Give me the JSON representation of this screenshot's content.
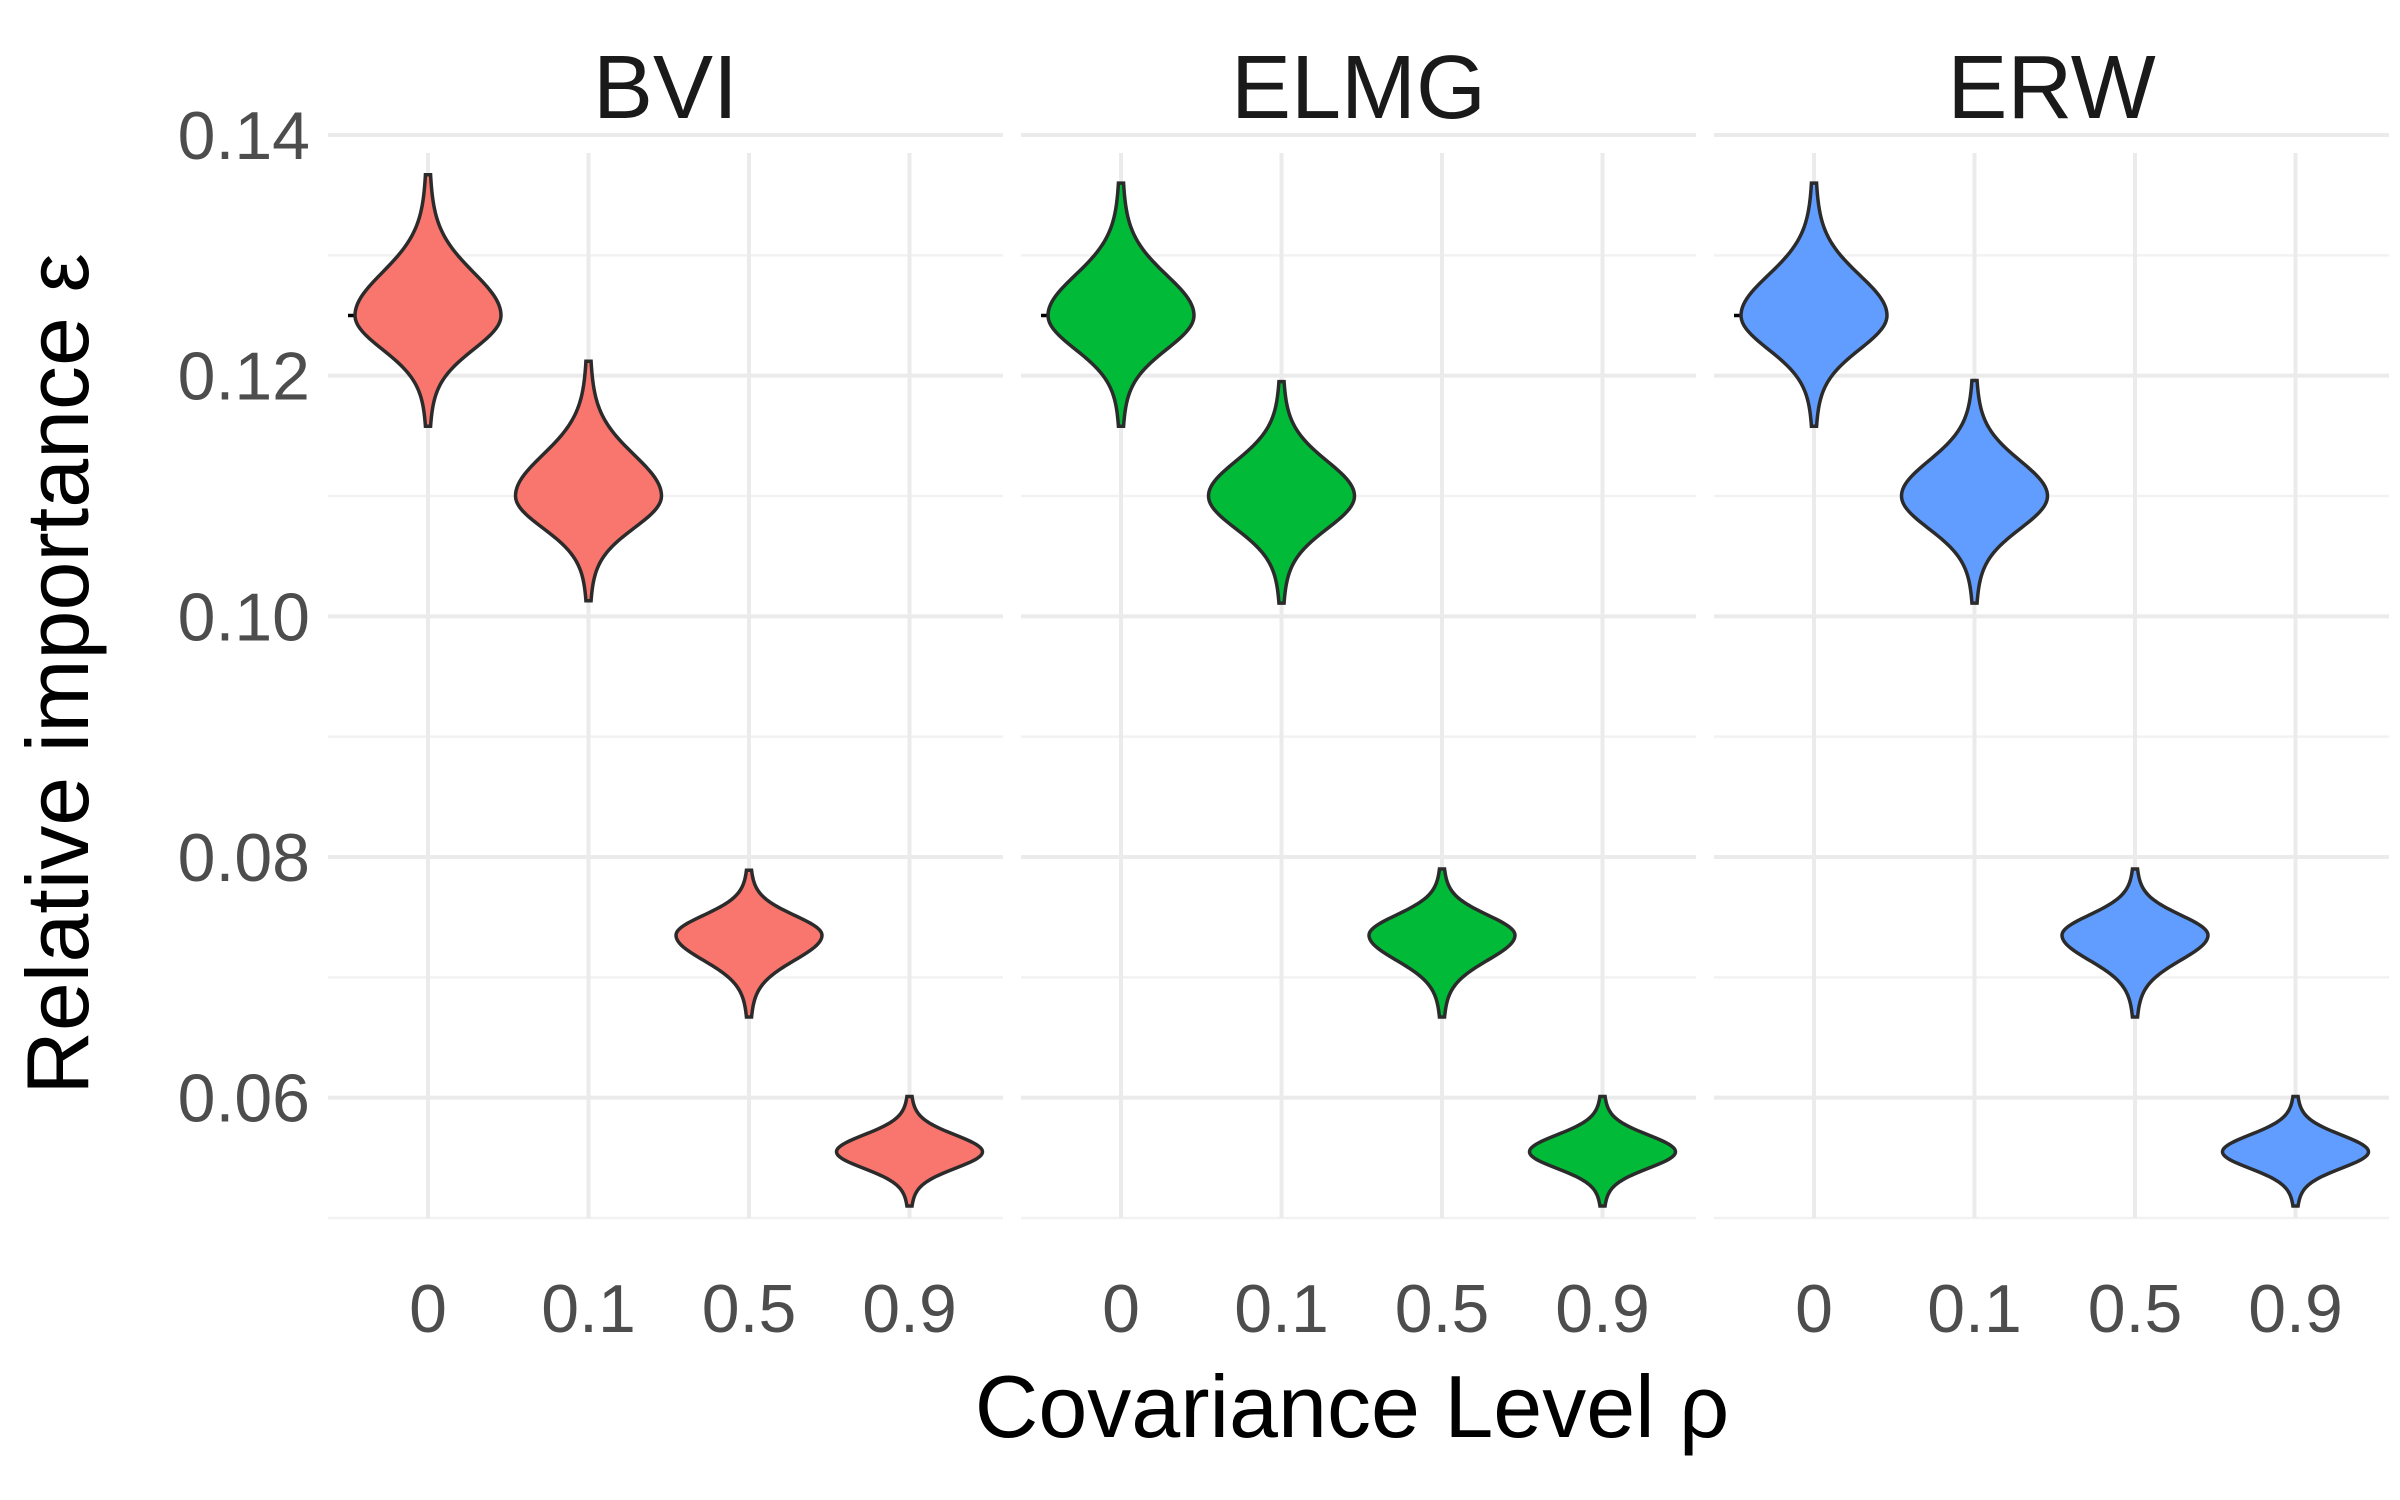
{
  "chart_data": {
    "type": "violin",
    "xlabel": "Covariance Level ρ",
    "ylabel": "Relative importance ε",
    "categories": [
      "0",
      "0.1",
      "0.5",
      "0.9"
    ],
    "ylim": [
      0.05,
      0.14
    ],
    "yticks": [
      0.06,
      0.08,
      0.1,
      0.12,
      0.14
    ],
    "ytick_labels": [
      "0.06",
      "0.08",
      "0.10",
      "0.12",
      "0.14"
    ],
    "grid": true,
    "reference_value": 0.125,
    "reference_category": "0",
    "panels": [
      {
        "name": "BVI",
        "color": "#F8766D",
        "violins": [
          {
            "category": "0",
            "median": 0.125,
            "min": 0.1158,
            "max": 0.1367
          },
          {
            "category": "0.1",
            "median": 0.11,
            "min": 0.1013,
            "max": 0.1212
          },
          {
            "category": "0.5",
            "median": 0.0735,
            "min": 0.0667,
            "max": 0.0789
          },
          {
            "category": "0.9",
            "median": 0.0555,
            "min": 0.051,
            "max": 0.0601
          }
        ]
      },
      {
        "name": "ELMG",
        "color": "#00BA38",
        "violins": [
          {
            "category": "0",
            "median": 0.125,
            "min": 0.1158,
            "max": 0.136
          },
          {
            "category": "0.1",
            "median": 0.11,
            "min": 0.1011,
            "max": 0.1195
          },
          {
            "category": "0.5",
            "median": 0.0735,
            "min": 0.0667,
            "max": 0.079
          },
          {
            "category": "0.9",
            "median": 0.0555,
            "min": 0.051,
            "max": 0.0601
          }
        ]
      },
      {
        "name": "ERW",
        "color": "#619CFF",
        "violins": [
          {
            "category": "0",
            "median": 0.125,
            "min": 0.1158,
            "max": 0.136
          },
          {
            "category": "0.1",
            "median": 0.11,
            "min": 0.1011,
            "max": 0.1196
          },
          {
            "category": "0.5",
            "median": 0.0735,
            "min": 0.0667,
            "max": 0.079
          },
          {
            "category": "0.9",
            "median": 0.0555,
            "min": 0.051,
            "max": 0.0601
          }
        ]
      }
    ]
  }
}
